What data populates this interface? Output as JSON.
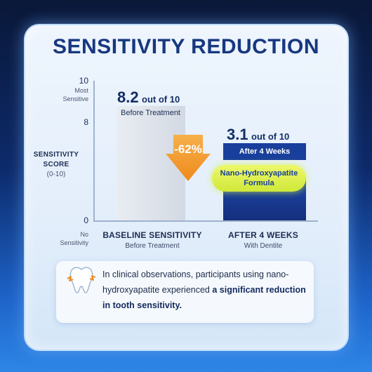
{
  "title": "SENSITIVITY REDUCTION",
  "y_axis": {
    "label_line1": "SENSITIVITY",
    "label_line2": "SCORE",
    "label_line3": "(0-10)",
    "top_tick": "10",
    "top_note_line1": "Most",
    "top_note_line2": "Sensitive",
    "mid_tick": "8",
    "bottom_tick": "0",
    "bottom_note_line1": "No",
    "bottom_note_line2": "Sensitivity"
  },
  "bars": {
    "before_value_text": "8.2",
    "before_value_suffix": "out of 10",
    "before_label": "Before Treatment",
    "after_value_text": "3.1",
    "after_value_suffix": "out of 10",
    "after_label": "After 4 Weeks",
    "formula_line1": "Nano-Hydroxyapatite",
    "formula_line2": "Formula",
    "change_label": "-62%"
  },
  "categories": {
    "c1_title": "BASELINE SENSITIVITY",
    "c1_sub": "Before Treatment",
    "c2_title": "AFTER 4 WEEKS",
    "c2_sub": "With Dentite"
  },
  "note": {
    "text_plain": "In clinical observations, participants using nano-hydroxyapatite experienced",
    "text_bold": "a significant reduction in tooth sensitivity."
  },
  "colors": {
    "title": "#17387f",
    "before_bar": "#dfe4ec",
    "after_bar": "#183f9c",
    "arrow": "#f29a2c",
    "highlight": "#d9ef45"
  },
  "chart_data": {
    "type": "bar",
    "categories": [
      "BASELINE SENSITIVITY",
      "AFTER 4 WEEKS"
    ],
    "values": [
      8.2,
      3.1
    ],
    "title": "SENSITIVITY REDUCTION",
    "xlabel": "",
    "ylabel": "SENSITIVITY SCORE (0-10)",
    "ylim": [
      0,
      10
    ],
    "change": "-62%",
    "grid": false
  }
}
